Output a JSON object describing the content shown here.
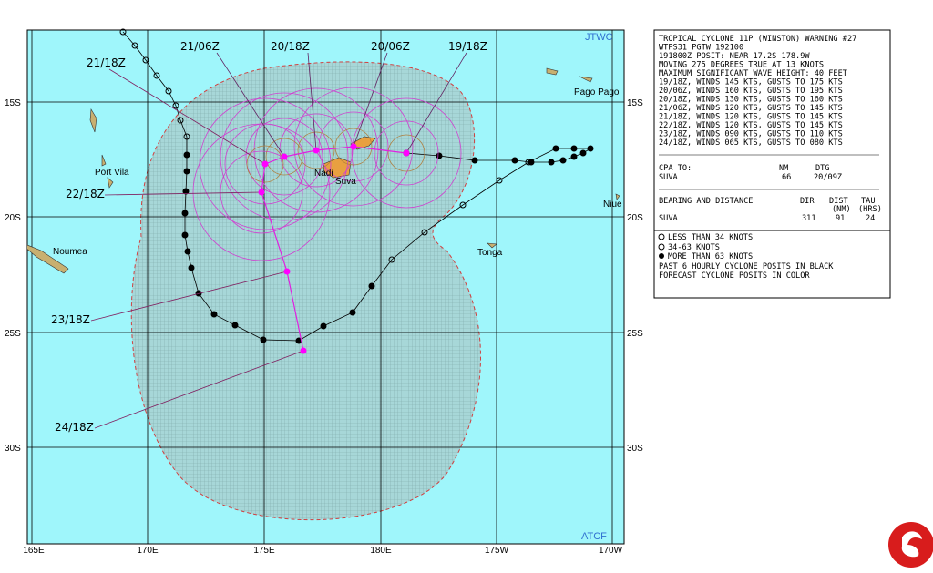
{
  "map": {
    "lat_labels": [
      "15S",
      "20S",
      "25S",
      "30S"
    ],
    "lon_labels": [
      "165E",
      "170E",
      "175E",
      "180E",
      "175W",
      "170W"
    ],
    "agency_top": "JTWC",
    "agency_bottom": "ATCF",
    "places": [
      "Pago Pago",
      "Port Vila",
      "Nadi",
      "Suva",
      "Niue",
      "Tonga",
      "Noumea"
    ],
    "forecast_labels": [
      "19/18Z",
      "20/06Z",
      "20/18Z",
      "21/06Z",
      "21/18Z",
      "22/18Z",
      "23/18Z",
      "24/18Z"
    ]
  },
  "warning": {
    "lines": [
      "TROPICAL CYCLONE 11P (WINSTON) WARNING #27",
      "WTPS31 PGTW 192100",
      "191800Z POSIT: NEAR 17.2S 178.9W",
      "MOVING 275 DEGREES TRUE AT 13 KNOTS",
      "MAXIMUM SIGNIFICANT WAVE HEIGHT: 40 FEET",
      "19/18Z, WINDS 145 KTS, GUSTS TO 175 KTS",
      "20/06Z, WINDS 160 KTS, GUSTS TO 195 KTS",
      "20/18Z, WINDS 130 KTS, GUSTS TO 160 KTS",
      "21/06Z, WINDS 120 KTS, GUSTS TO 145 KTS",
      "21/18Z, WINDS 120 KTS, GUSTS TO 145 KTS",
      "22/18Z, WINDS 120 KTS, GUSTS TO 145 KTS",
      "23/18Z, WINDS 090 KTS, GUSTS TO 110 KTS",
      "24/18Z, WINDS 065 KTS, GUSTS TO 080 KTS"
    ],
    "cpa": {
      "title": "CPA TO:",
      "headers": [
        "NM",
        "DTG"
      ],
      "row": [
        "SUVA",
        "66",
        "20/09Z"
      ]
    },
    "bearing": {
      "title": "BEARING AND DISTANCE",
      "headers": [
        "DIR",
        "DIST",
        "TAU"
      ],
      "subheaders": [
        "(NM)",
        "(HRS)"
      ],
      "row": [
        "SUVA",
        "311",
        "91",
        "24"
      ]
    }
  },
  "legend": [
    "LESS THAN 34 KNOTS",
    "34-63 KNOTS",
    "MORE THAN 63 KNOTS",
    "PAST 6 HOURLY CYCLONE POSITS IN BLACK",
    "FORECAST CYCLONE POSITS IN COLOR"
  ]
}
